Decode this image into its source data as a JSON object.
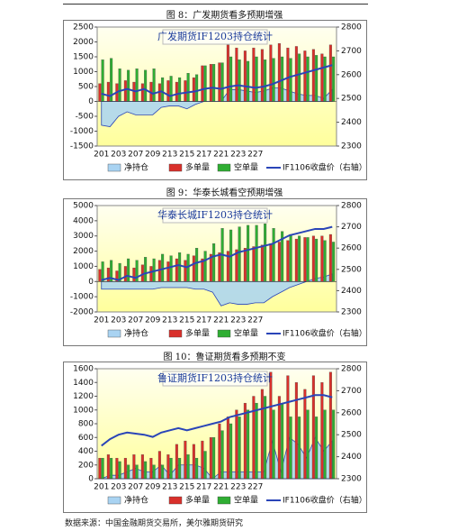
{
  "captions": [
    "图 8：广发期货看多预期增强",
    "图 9：华泰长城看空预期增强",
    "图 10：鲁证期货看多预期不变"
  ],
  "source": "数据来源：中国金融期货交易所，美尔雅期货研究",
  "chart_data": [
    {
      "type": "bar",
      "title": "广发期货IF1203持仓统计",
      "categories": [
        "201",
        null,
        "203",
        null,
        "207",
        null,
        "209",
        null,
        "213",
        null,
        "215",
        null,
        "217",
        null,
        "221",
        null,
        "223",
        null,
        "227",
        null,
        null,
        null,
        null,
        null,
        null,
        null,
        null,
        null
      ],
      "ylim": [
        -1500,
        2500
      ],
      "yticks": [
        -1500,
        -1000,
        -500,
        0,
        500,
        1000,
        1500,
        2000,
        2500
      ],
      "y2lim": [
        2300,
        2800
      ],
      "y2ticks": [
        2300,
        2400,
        2500,
        2600,
        2700,
        2800
      ],
      "series": [
        {
          "name": "净持仓",
          "type": "area",
          "color": "#a9d3f2",
          "values": [
            -800,
            -850,
            -500,
            -350,
            -450,
            -450,
            -450,
            -200,
            -150,
            -150,
            -250,
            -100,
            0,
            0,
            0,
            400,
            400,
            350,
            300,
            350,
            450,
            450,
            350,
            250,
            200,
            200,
            100,
            400
          ]
        },
        {
          "name": "多单量",
          "type": "bar",
          "color": "#d9302b",
          "values": [
            600,
            650,
            600,
            700,
            650,
            600,
            650,
            600,
            700,
            650,
            700,
            800,
            1200,
            1250,
            1300,
            1900,
            1800,
            1700,
            1800,
            1750,
            1900,
            1950,
            1800,
            1850,
            1700,
            1750,
            1600,
            1900
          ]
        },
        {
          "name": "空单量",
          "type": "bar",
          "color": "#2fae33",
          "values": [
            1400,
            1450,
            1100,
            1050,
            1100,
            1050,
            1100,
            800,
            850,
            800,
            950,
            900,
            1200,
            1250,
            1300,
            1500,
            1400,
            1350,
            1500,
            1400,
            1450,
            1500,
            1450,
            1600,
            1500,
            1550,
            1500,
            1500
          ]
        },
        {
          "name": "IF1106收盘价（右轴）",
          "type": "line",
          "axis": "y2",
          "color": "#2a45b8",
          "values": [
            2520,
            2510,
            2530,
            2540,
            2530,
            2540,
            2520,
            2530,
            2510,
            2520,
            2525,
            2530,
            2540,
            2545,
            2540,
            2550,
            2555,
            2550,
            2545,
            2550,
            2560,
            2575,
            2590,
            2600,
            2610,
            2620,
            2630,
            2640
          ]
        }
      ]
    },
    {
      "type": "bar",
      "title": "华泰长城IF1203持仓统计",
      "categories": [
        "201",
        null,
        "203",
        null,
        "207",
        null,
        "209",
        null,
        "213",
        null,
        "215",
        null,
        "217",
        null,
        "221",
        null,
        "223",
        null,
        "227",
        null,
        null,
        null,
        null,
        null,
        null,
        null,
        null,
        null
      ],
      "ylim": [
        -2000,
        5000
      ],
      "yticks": [
        -2000,
        -1000,
        0,
        1000,
        2000,
        3000,
        4000,
        5000
      ],
      "y2lim": [
        2300,
        2800
      ],
      "y2ticks": [
        2300,
        2400,
        2500,
        2600,
        2700,
        2800
      ],
      "series": [
        {
          "name": "净持仓",
          "type": "area",
          "color": "#a9d3f2",
          "values": [
            -500,
            -500,
            -500,
            -500,
            -500,
            -500,
            -500,
            -400,
            -400,
            -400,
            -400,
            -500,
            -500,
            -700,
            -1600,
            -1400,
            -1500,
            -1500,
            -1400,
            -1400,
            -1000,
            -700,
            -400,
            -200,
            0,
            200,
            300,
            500
          ]
        },
        {
          "name": "多单量",
          "type": "bar",
          "color": "#d9302b",
          "values": [
            800,
            900,
            700,
            1000,
            900,
            1100,
            1000,
            1400,
            1300,
            1500,
            1400,
            1700,
            1500,
            1800,
            1900,
            2000,
            2100,
            2200,
            2300,
            2400,
            2500,
            2600,
            2700,
            2800,
            2900,
            3000,
            3000,
            3100
          ]
        },
        {
          "name": "空单量",
          "type": "bar",
          "color": "#2fae33",
          "values": [
            1300,
            1400,
            1200,
            1500,
            1400,
            1600,
            1500,
            1800,
            1700,
            1900,
            1800,
            2200,
            2000,
            2500,
            3500,
            3400,
            3600,
            3700,
            3700,
            3800,
            3500,
            3300,
            3100,
            3000,
            2900,
            2800,
            2700,
            2600
          ]
        },
        {
          "name": "IF1106收盘价（右轴）",
          "type": "line",
          "axis": "y2",
          "color": "#2a45b8",
          "values": [
            2450,
            2460,
            2450,
            2470,
            2460,
            2480,
            2490,
            2500,
            2510,
            2520,
            2510,
            2530,
            2540,
            2560,
            2570,
            2560,
            2580,
            2590,
            2600,
            2610,
            2620,
            2640,
            2660,
            2670,
            2680,
            2690,
            2690,
            2700
          ]
        }
      ]
    },
    {
      "type": "bar",
      "title": "鲁证期货IF1203持仓统计",
      "categories": [
        "201",
        null,
        "203",
        null,
        "207",
        null,
        "209",
        null,
        "213",
        null,
        "215",
        null,
        "217",
        null,
        "221",
        null,
        "223",
        null,
        "227",
        null,
        null,
        null,
        null,
        null,
        null,
        null,
        null,
        null
      ],
      "ylim": [
        0,
        1600
      ],
      "yticks": [
        0,
        200,
        400,
        600,
        800,
        1000,
        1200,
        1400,
        1600
      ],
      "y2lim": [
        2300,
        2800
      ],
      "y2ticks": [
        2300,
        2400,
        2500,
        2600,
        2700,
        2800
      ],
      "series": [
        {
          "name": "净持仓",
          "type": "area",
          "color": "#a9d3f2",
          "values": [
            0,
            50,
            50,
            100,
            150,
            100,
            100,
            200,
            50,
            200,
            200,
            200,
            150,
            0,
            100,
            100,
            100,
            100,
            100,
            100,
            550,
            100,
            600,
            500,
            300,
            600,
            400,
            550
          ]
        },
        {
          "name": "多单量",
          "type": "bar",
          "color": "#d9302b",
          "values": [
            300,
            350,
            300,
            300,
            350,
            350,
            300,
            400,
            350,
            500,
            550,
            500,
            550,
            600,
            800,
            900,
            1000,
            1100,
            1200,
            1300,
            1550,
            1200,
            1500,
            1400,
            1300,
            1500,
            1400,
            1550
          ]
        },
        {
          "name": "空单量",
          "type": "bar",
          "color": "#2fae33",
          "values": [
            300,
            300,
            250,
            200,
            200,
            250,
            200,
            200,
            300,
            300,
            350,
            300,
            400,
            600,
            700,
            800,
            900,
            1000,
            1100,
            1200,
            1000,
            1100,
            900,
            900,
            1000,
            900,
            1000,
            1000
          ]
        },
        {
          "name": "IF1106收盘价（右轴）",
          "type": "line",
          "axis": "y2",
          "color": "#2a45b8",
          "values": [
            2450,
            2480,
            2500,
            2510,
            2505,
            2500,
            2490,
            2510,
            2520,
            2530,
            2520,
            2530,
            2540,
            2550,
            2560,
            2580,
            2590,
            2600,
            2610,
            2620,
            2630,
            2640,
            2650,
            2660,
            2670,
            2680,
            2680,
            2670
          ]
        }
      ]
    }
  ]
}
